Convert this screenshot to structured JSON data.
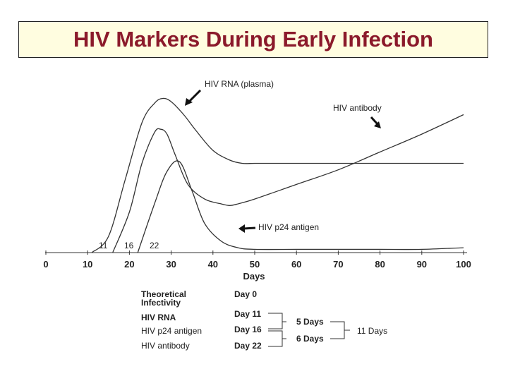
{
  "title": "HIV Markers During Early Infection",
  "chart_data": {
    "type": "line",
    "xlabel": "Days",
    "ylabel": "",
    "xlim": [
      0,
      100
    ],
    "xticks": [
      0,
      10,
      20,
      30,
      40,
      50,
      60,
      70,
      80,
      90,
      100
    ],
    "detection_labels": [
      "11",
      "16",
      "22"
    ],
    "annotations": {
      "rna_plasma": "HIV RNA (plasma)",
      "antibody": "HIV antibody",
      "p24": "HIV p24 antigen"
    },
    "series": [
      {
        "key": "rna",
        "x": [
          11,
          15,
          19,
          23,
          26,
          28,
          30,
          33,
          36,
          40,
          44,
          47,
          50,
          55,
          60,
          70,
          80,
          90,
          100
        ],
        "y": [
          0,
          0.1,
          0.45,
          0.8,
          0.92,
          0.95,
          0.93,
          0.85,
          0.75,
          0.63,
          0.57,
          0.55,
          0.55,
          0.55,
          0.55,
          0.55,
          0.55,
          0.55,
          0.55
        ]
      },
      {
        "key": "p24",
        "x": [
          16,
          20,
          23,
          26,
          27.5,
          29,
          31,
          34,
          38,
          42,
          44,
          46
        ],
        "y": [
          0,
          0.25,
          0.55,
          0.74,
          0.76,
          0.73,
          0.6,
          0.42,
          0.33,
          0.3,
          0.29,
          0.3
        ]
      },
      {
        "key": "antibody",
        "x": [
          46,
          50,
          60,
          70,
          80,
          90,
          100
        ],
        "y": [
          0.3,
          0.33,
          0.42,
          0.51,
          0.62,
          0.73,
          0.85
        ]
      },
      {
        "key": "rna_low",
        "x": [
          22,
          26,
          29,
          32,
          35,
          38,
          42,
          46,
          50,
          60,
          70,
          80,
          90,
          100
        ],
        "y": [
          0,
          0.3,
          0.5,
          0.56,
          0.38,
          0.18,
          0.07,
          0.03,
          0.02,
          0.02,
          0.02,
          0.02,
          0.02,
          0.03
        ]
      }
    ]
  },
  "table": {
    "rows": [
      {
        "marker": "Theoretical\nInfectivity",
        "marker_lines": [
          "Theoretical",
          "Infectivity"
        ],
        "day": "Day 0"
      },
      {
        "marker": "HIV RNA",
        "day": "Day 11"
      },
      {
        "marker": "HIV p24 antigen",
        "day": "Day 16"
      },
      {
        "marker": "HIV antibody",
        "day": "Day 22"
      }
    ],
    "gap1": "5 Days",
    "gap2": "6 Days",
    "total": "11 Days"
  }
}
